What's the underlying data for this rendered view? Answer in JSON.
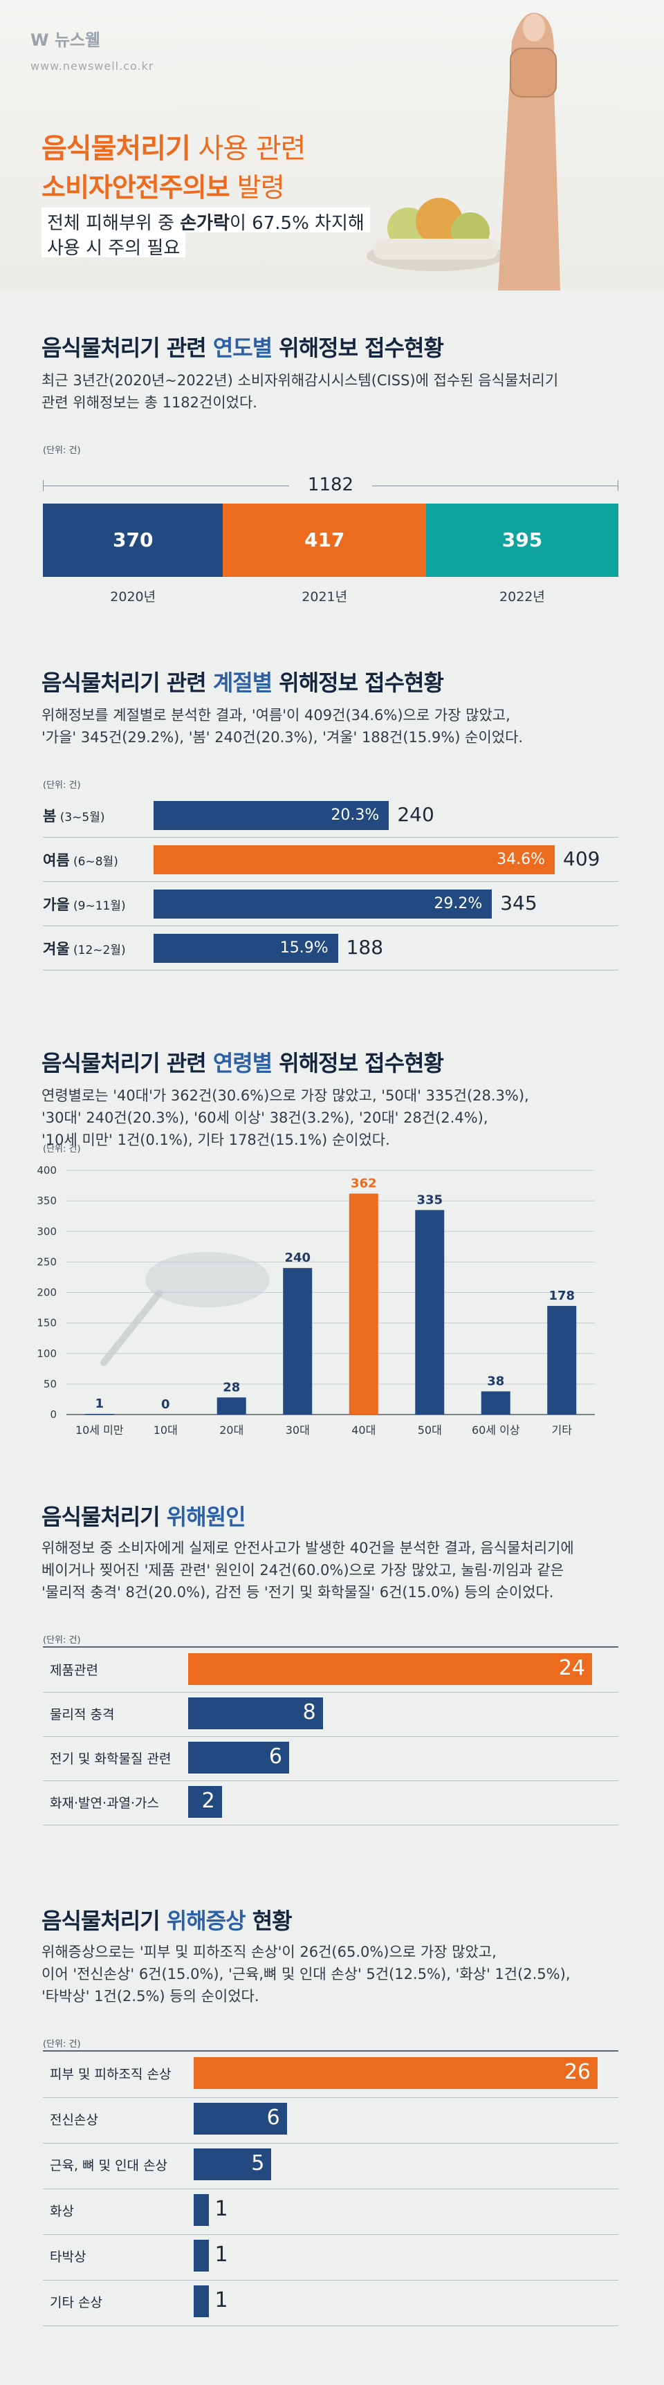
{
  "header": {
    "logo": "뉴스웰",
    "url": "www.newswell.co.kr",
    "title_line1_bold": "음식물처리기",
    "title_line1_rest": " 사용 관련",
    "title_line2_bold": "소비자안전주의보",
    "title_line2_rest": " 발령",
    "sub_line1_a": "전체 피해부위 중 ",
    "sub_line1_b": "손가락",
    "sub_line1_c": "이 67.5% 차지해",
    "sub_line2": "사용 시 주의 필요"
  },
  "sections": {
    "yearly": {
      "title_a": "음식물처리기 관련 ",
      "title_hl": "연도별",
      "title_b": " 위해정보 접수현황",
      "desc1": "최근 3년간(2020년~2022년) 소비자위해감시시스템(CISS)에 접수된 음식물처리기",
      "desc2": "관련 위해정보는 총 1182건이었다.",
      "unit": "(단위: 건)"
    },
    "season": {
      "title_a": "음식물처리기 관련 ",
      "title_hl": "계절별",
      "title_b": " 위해정보 접수현황",
      "desc1": "위해정보를 계절별로 분석한 결과, '여름'이 409건(34.6%)으로 가장 많았고,",
      "desc2": "'가을' 345건(29.2%), '봄' 240건(20.3%), '겨울' 188건(15.9%) 순이었다.",
      "unit": "(단위: 건)"
    },
    "age": {
      "title_a": "음식물처리기 관련 ",
      "title_hl": "연령별",
      "title_b": " 위해정보 접수현황",
      "desc1": "연령별로는 '40대'가 362건(30.6%)으로 가장 많았고, '50대' 335건(28.3%),",
      "desc2": "'30대' 240건(20.3%), '60세 이상' 38건(3.2%), '20대' 28건(2.4%),",
      "desc3": "'10세 미만' 1건(0.1%), 기타 178건(15.1%) 순이었다.",
      "unit": "(단위: 건)"
    },
    "cause": {
      "title_a": "음식물처리기 ",
      "title_hl": "위해원인",
      "title_b": "",
      "desc1": "위해정보 중 소비자에게 실제로 안전사고가 발생한 40건을 분석한 결과, 음식물처리기에",
      "desc2": "베이거나 찢어진 '제품 관련' 원인이 24건(60.0%)으로 가장 많았고, 눌림·끼임과 같은",
      "desc3": "'물리적 충격' 8건(20.0%), 감전 등 '전기 및 화학물질' 6건(15.0%) 등의 순이었다.",
      "unit": "(단위: 건)"
    },
    "symptom": {
      "title_a": "음식물처리기 ",
      "title_hl": "위해증상",
      "title_b": " 현황",
      "desc1": "위해증상으로는 '피부 및 피하조직 손상'이 26건(65.0%)으로 가장 많았고,",
      "desc2": "이어 '전신손상' 6건(15.0%), '근육,뼈 및 인대 손상' 5건(12.5%), '화상' 1건(2.5%),",
      "desc3": "'타박상' 1건(2.5%) 등의 순이었다.",
      "unit": "(단위: 건)"
    }
  },
  "chart_data": [
    {
      "type": "bar",
      "orientation": "stacked-horizontal",
      "total": "1182",
      "categories": [
        "2020년",
        "2021년",
        "2022년"
      ],
      "values": [
        370,
        417,
        395
      ],
      "colors": [
        "#234a80",
        "#ec6b1f",
        "#0fa3a0"
      ]
    },
    {
      "type": "bar",
      "orientation": "horizontal",
      "categories": [
        {
          "name": "봄",
          "months": "(3~5월)"
        },
        {
          "name": "여름",
          "months": "(6~8월)"
        },
        {
          "name": "가을",
          "months": "(9~11월)"
        },
        {
          "name": "겨울",
          "months": "(12~2월)"
        }
      ],
      "values": [
        240,
        409,
        345,
        188
      ],
      "percents": [
        "20.3%",
        "34.6%",
        "29.2%",
        "15.9%"
      ],
      "colors": [
        "#234a80",
        "#ec6b1f",
        "#234a80",
        "#234a80"
      ]
    },
    {
      "type": "bar",
      "orientation": "vertical",
      "categories": [
        "10세 미만",
        "10대",
        "20대",
        "30대",
        "40대",
        "50대",
        "60세 이상",
        "기타"
      ],
      "values": [
        1,
        0,
        28,
        240,
        362,
        335,
        38,
        178
      ],
      "ylim": [
        0,
        400
      ],
      "yticks": [
        0,
        50,
        100,
        150,
        200,
        250,
        300,
        350,
        400
      ],
      "colors": [
        "#234a80",
        "#234a80",
        "#234a80",
        "#234a80",
        "#ec6b1f",
        "#234a80",
        "#234a80",
        "#234a80"
      ]
    },
    {
      "type": "bar",
      "orientation": "horizontal",
      "categories": [
        "제품관련",
        "물리적 충격",
        "전기 및 화학물질 관련",
        "화재·발연·과열·가스"
      ],
      "values": [
        24,
        8,
        6,
        2
      ],
      "colors": [
        "#ec6b1f",
        "#234a80",
        "#234a80",
        "#234a80"
      ]
    },
    {
      "type": "bar",
      "orientation": "horizontal",
      "categories": [
        "피부 및 피하조직 손상",
        "전신손상",
        "근육, 뼈 및 인대 손상",
        "화상",
        "타박상",
        "기타 손상"
      ],
      "values": [
        26,
        6,
        5,
        1,
        1,
        1
      ],
      "colors": [
        "#ec6b1f",
        "#234a80",
        "#234a80",
        "#234a80",
        "#234a80",
        "#234a80"
      ]
    }
  ]
}
